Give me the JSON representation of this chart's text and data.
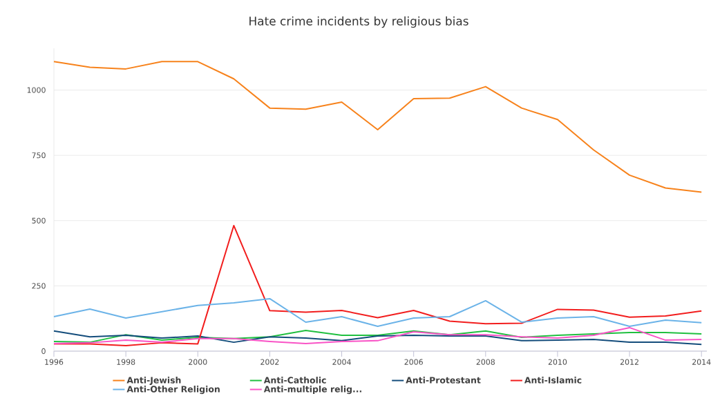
{
  "chart_data": {
    "type": "line",
    "title": "Hate crime incidents by religious bias",
    "x": [
      1996,
      1997,
      1998,
      1999,
      2000,
      2001,
      2002,
      2003,
      2004,
      2005,
      2006,
      2007,
      2008,
      2009,
      2010,
      2011,
      2012,
      2013,
      2014
    ],
    "xlim": [
      1996,
      2014.15
    ],
    "xticks": [
      1996,
      1998,
      2000,
      2002,
      2004,
      2006,
      2008,
      2010,
      2012,
      2014
    ],
    "ylim": [
      0,
      1160
    ],
    "yticks": [
      0,
      250,
      500,
      750,
      1000
    ],
    "grid": "y",
    "legend": "bottom",
    "series": [
      {
        "name": "Anti-Jewish",
        "color": "#f7821b",
        "values": [
          1109,
          1087,
          1081,
          1109,
          1109,
          1043,
          931,
          927,
          954,
          848,
          967,
          969,
          1013,
          931,
          887,
          771,
          674,
          625,
          609
        ]
      },
      {
        "name": "Anti-Catholic",
        "color": "#1fbf3f",
        "values": [
          37,
          34,
          63,
          42,
          53,
          48,
          55,
          79,
          61,
          61,
          77,
          63,
          77,
          53,
          61,
          66,
          71,
          71,
          66
        ]
      },
      {
        "name": "Anti-Protestant",
        "color": "#134c7b",
        "values": [
          77,
          55,
          61,
          50,
          58,
          34,
          55,
          50,
          40,
          58,
          61,
          58,
          58,
          40,
          42,
          45,
          34,
          34,
          26
        ]
      },
      {
        "name": "Anti-Islamic",
        "color": "#f21d1d",
        "values": [
          28,
          28,
          21,
          32,
          28,
          481,
          155,
          149,
          156,
          128,
          156,
          115,
          105,
          107,
          160,
          157,
          130,
          135,
          154
        ]
      },
      {
        "name": "Anti-Other Religion",
        "color": "#6bb3e8",
        "values": [
          132,
          161,
          127,
          151,
          175,
          185,
          201,
          111,
          132,
          95,
          127,
          132,
          193,
          111,
          127,
          132,
          95,
          119,
          109
        ]
      },
      {
        "name": "Anti-multiple relig...",
        "color": "#f953c6",
        "values": [
          29,
          32,
          42,
          34,
          48,
          48,
          37,
          29,
          37,
          40,
          74,
          63,
          63,
          55,
          50,
          61,
          90,
          42,
          45
        ]
      }
    ]
  }
}
